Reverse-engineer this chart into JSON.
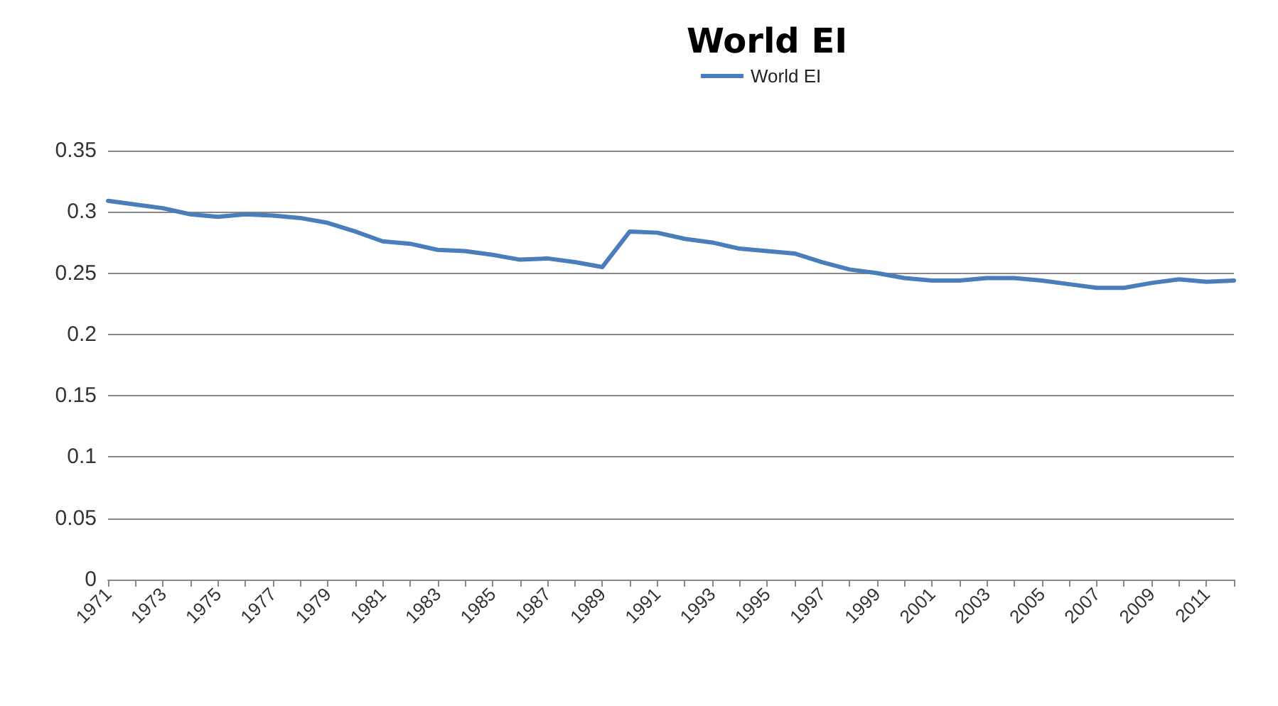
{
  "chart_data": {
    "type": "line",
    "title": "World EI",
    "categories": [
      "1971",
      null,
      "1973",
      null,
      "1975",
      null,
      "1977",
      null,
      "1979",
      null,
      "1981",
      null,
      "1983",
      null,
      "1985",
      null,
      "1987",
      null,
      "1989",
      null,
      "1991",
      null,
      "1993",
      null,
      "1995",
      null,
      "1997",
      null,
      "1999",
      null,
      "2001",
      null,
      "2003",
      null,
      "2005",
      null,
      "2007",
      null,
      "2009",
      null,
      "2011",
      null
    ],
    "series": [
      {
        "name": "World EI",
        "color": "#4a7ebb",
        "values": [
          0.309,
          0.306,
          0.303,
          0.298,
          0.296,
          0.298,
          0.297,
          0.295,
          0.291,
          0.284,
          0.276,
          0.274,
          0.269,
          0.268,
          0.265,
          0.261,
          0.262,
          0.259,
          0.255,
          0.284,
          0.283,
          0.278,
          0.275,
          0.27,
          0.268,
          0.266,
          0.259,
          0.253,
          0.25,
          0.246,
          0.244,
          0.244,
          0.246,
          0.246,
          0.244,
          0.241,
          0.238,
          0.238,
          0.242,
          0.245,
          0.243,
          0.244
        ]
      }
    ],
    "ylim": [
      0,
      0.35
    ],
    "yticks": [
      0,
      0.05,
      0.1,
      0.15,
      0.2,
      0.25,
      0.3,
      0.35
    ],
    "grid": "y",
    "legend": "top",
    "marker": "none",
    "line_style": "solid"
  }
}
